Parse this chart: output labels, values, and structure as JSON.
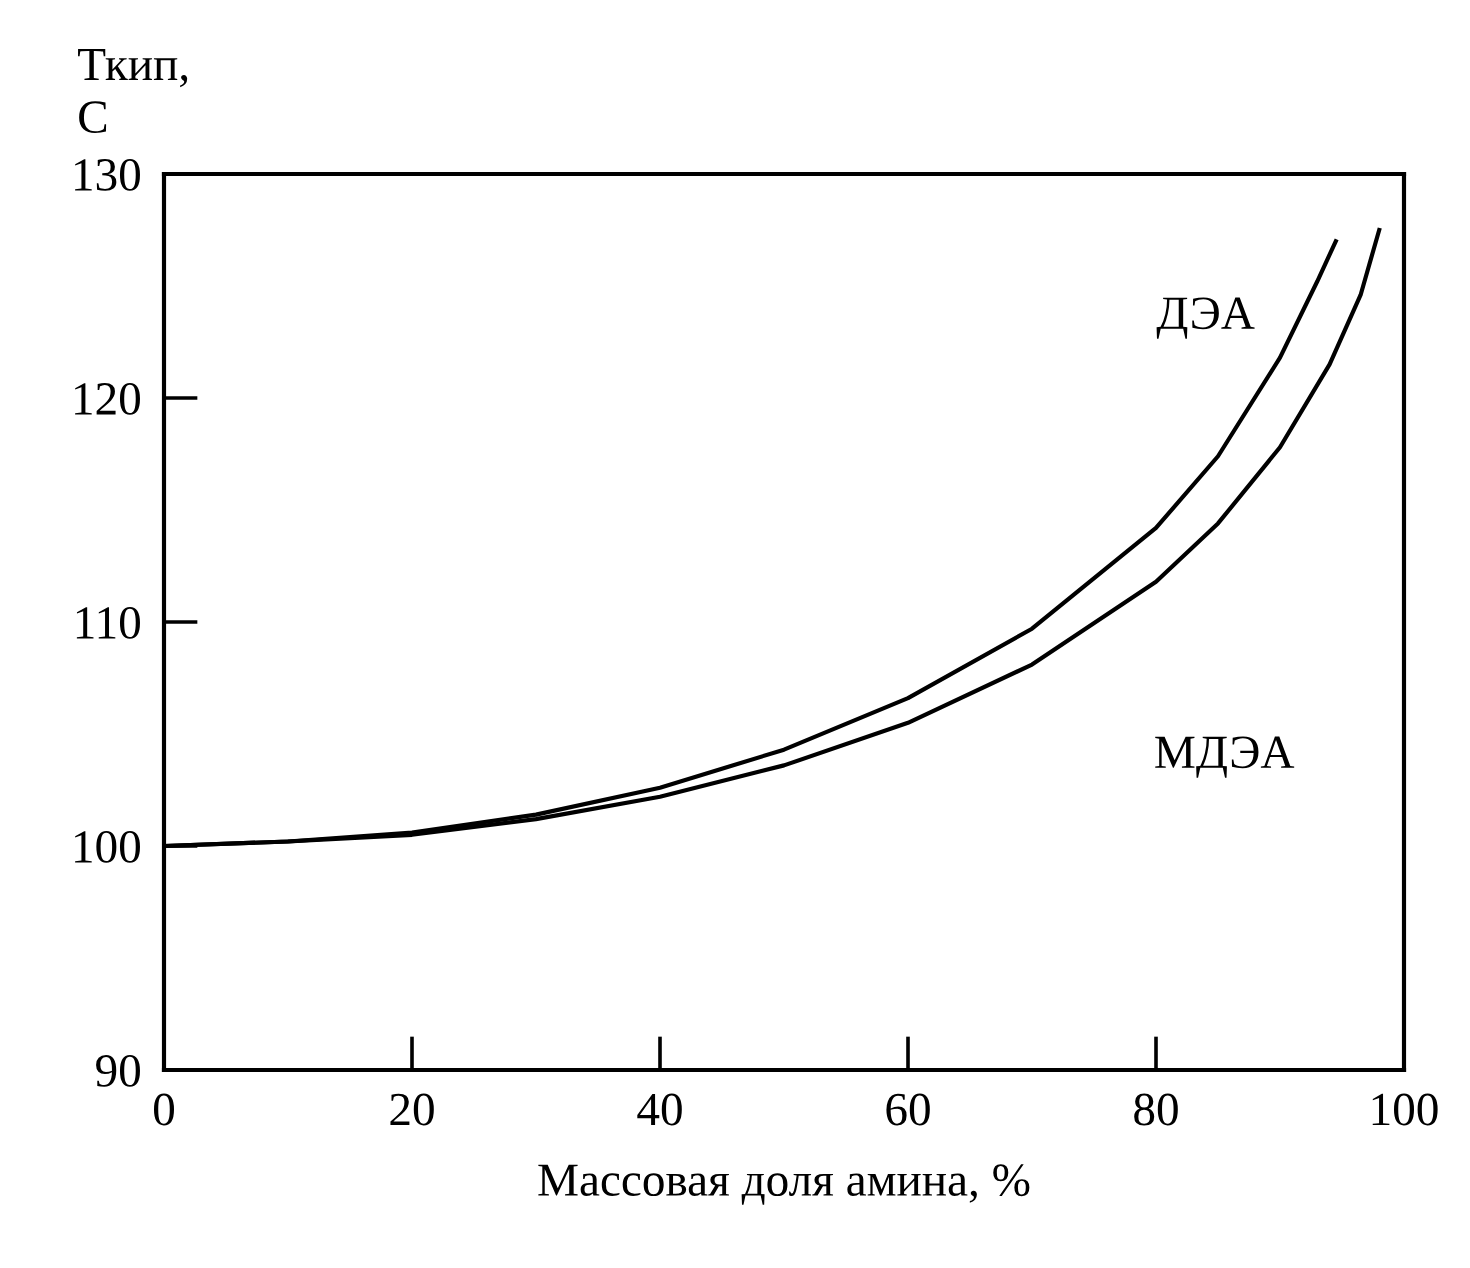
{
  "chart_data": {
    "type": "line",
    "ylabel": "Ткип,\nС",
    "xlabel": "Массовая доля амина, %",
    "series": [
      {
        "color": "#000000",
        "x": [
          0,
          10,
          20,
          30,
          40,
          50,
          60,
          70,
          80,
          85,
          90,
          93,
          94.5
        ],
        "values": [
          100,
          100.2,
          100.6,
          101.4,
          102.6,
          104.3,
          106.6,
          109.7,
          114.2,
          117.4,
          121.8,
          125.2,
          127
        ]
      },
      {
        "color": "#000000",
        "x": [
          0,
          10,
          20,
          30,
          40,
          50,
          60,
          70,
          80,
          85,
          90,
          94,
          96.5,
          98
        ],
        "values": [
          100,
          100.2,
          100.5,
          101.2,
          102.2,
          103.6,
          105.5,
          108.1,
          111.8,
          114.4,
          117.8,
          121.5,
          124.6,
          127.5
        ]
      }
    ],
    "annotations": [
      "ДЭА",
      "МДЭА"
    ],
    "xlim": [
      0,
      100
    ],
    "xticks": [
      0,
      20,
      40,
      60,
      80,
      100
    ],
    "ylim": [
      90,
      130
    ],
    "yticks": [
      90,
      100,
      110,
      120,
      130
    ],
    "grid": false,
    "legend": false,
    "line_style": "solid",
    "marker": "none"
  }
}
